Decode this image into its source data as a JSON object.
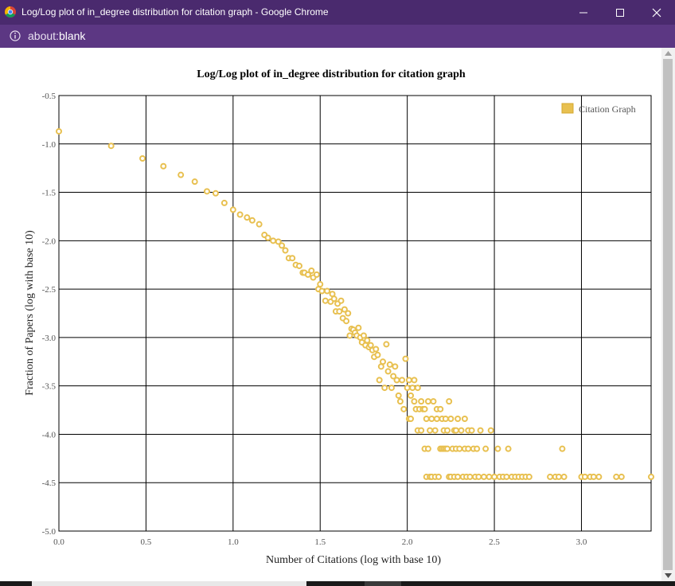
{
  "window": {
    "title": "Log/Log plot of in_degree distribution for citation graph - Google Chrome",
    "url_scheme": "about:",
    "url_host": "blank"
  },
  "icons": {
    "browser": "chrome-icon",
    "info": "info-icon",
    "minimize": "minimize-icon",
    "maximize": "maximize-icon",
    "close": "close-icon"
  },
  "chart_data": {
    "type": "scatter",
    "title": "Log/Log plot of in_degree distribution for citation graph",
    "xlabel": "Number of Citations (log with base 10)",
    "ylabel": "Fraction of Papers (log with base 10)",
    "xlim": [
      0,
      3.4
    ],
    "ylim": [
      -5.0,
      -0.5
    ],
    "xticks": [
      "0.0",
      "0.5",
      "1.0",
      "1.5",
      "2.0",
      "2.5",
      "3.0"
    ],
    "yticks": [
      "-0.5",
      "-1.0",
      "-1.5",
      "-2.0",
      "-2.5",
      "-3.0",
      "-3.5",
      "-4.0",
      "-4.5",
      "-5.0"
    ],
    "grid": true,
    "legend_position": "top-right",
    "marker_color": "#e8c050",
    "series": [
      {
        "name": "Citation Graph",
        "points": [
          [
            0.0,
            -0.87
          ],
          [
            0.3,
            -1.02
          ],
          [
            0.48,
            -1.15
          ],
          [
            0.6,
            -1.23
          ],
          [
            0.7,
            -1.32
          ],
          [
            0.78,
            -1.39
          ],
          [
            0.85,
            -1.49
          ],
          [
            0.9,
            -1.51
          ],
          [
            0.95,
            -1.61
          ],
          [
            1.0,
            -1.68
          ],
          [
            1.04,
            -1.73
          ],
          [
            1.08,
            -1.76
          ],
          [
            1.11,
            -1.79
          ],
          [
            1.15,
            -1.83
          ],
          [
            1.18,
            -1.94
          ],
          [
            1.2,
            -1.97
          ],
          [
            1.23,
            -2.0
          ],
          [
            1.26,
            -2.01
          ],
          [
            1.28,
            -2.05
          ],
          [
            1.3,
            -2.1
          ],
          [
            1.32,
            -2.18
          ],
          [
            1.34,
            -2.18
          ],
          [
            1.36,
            -2.25
          ],
          [
            1.38,
            -2.26
          ],
          [
            1.4,
            -2.33
          ],
          [
            1.41,
            -2.33
          ],
          [
            1.43,
            -2.35
          ],
          [
            1.45,
            -2.31
          ],
          [
            1.46,
            -2.38
          ],
          [
            1.48,
            -2.35
          ],
          [
            1.49,
            -2.5
          ],
          [
            1.5,
            -2.45
          ],
          [
            1.51,
            -2.52
          ],
          [
            1.53,
            -2.62
          ],
          [
            1.54,
            -2.52
          ],
          [
            1.56,
            -2.63
          ],
          [
            1.57,
            -2.55
          ],
          [
            1.58,
            -2.6
          ],
          [
            1.59,
            -2.73
          ],
          [
            1.6,
            -2.65
          ],
          [
            1.61,
            -2.73
          ],
          [
            1.62,
            -2.62
          ],
          [
            1.63,
            -2.8
          ],
          [
            1.64,
            -2.71
          ],
          [
            1.65,
            -2.83
          ],
          [
            1.66,
            -2.75
          ],
          [
            1.67,
            -2.98
          ],
          [
            1.68,
            -2.91
          ],
          [
            1.69,
            -2.92
          ],
          [
            1.7,
            -2.95
          ],
          [
            1.71,
            -2.98
          ],
          [
            1.72,
            -2.9
          ],
          [
            1.73,
            -3.0
          ],
          [
            1.74,
            -3.05
          ],
          [
            1.75,
            -2.98
          ],
          [
            1.76,
            -3.08
          ],
          [
            1.77,
            -3.03
          ],
          [
            1.78,
            -3.1
          ],
          [
            1.79,
            -3.08
          ],
          [
            1.8,
            -3.13
          ],
          [
            1.81,
            -3.2
          ],
          [
            1.82,
            -3.12
          ],
          [
            1.83,
            -3.18
          ],
          [
            1.84,
            -3.44
          ],
          [
            1.85,
            -3.3
          ],
          [
            1.86,
            -3.25
          ],
          [
            1.87,
            -3.52
          ],
          [
            1.88,
            -3.07
          ],
          [
            1.89,
            -3.35
          ],
          [
            1.9,
            -3.28
          ],
          [
            1.91,
            -3.52
          ],
          [
            1.92,
            -3.4
          ],
          [
            1.93,
            -3.3
          ],
          [
            1.94,
            -3.44
          ],
          [
            1.95,
            -3.6
          ],
          [
            1.96,
            -3.66
          ],
          [
            1.97,
            -3.44
          ],
          [
            1.98,
            -3.74
          ],
          [
            1.99,
            -3.22
          ],
          [
            2.0,
            -3.52
          ],
          [
            2.01,
            -3.44
          ],
          [
            2.01,
            -3.84
          ],
          [
            2.02,
            -3.6
          ],
          [
            2.02,
            -3.84
          ],
          [
            2.03,
            -3.52
          ],
          [
            2.04,
            -3.44
          ],
          [
            2.04,
            -3.66
          ],
          [
            2.05,
            -3.74
          ],
          [
            2.06,
            -3.52
          ],
          [
            2.06,
            -3.96
          ],
          [
            2.07,
            -3.74
          ],
          [
            2.08,
            -3.66
          ],
          [
            2.08,
            -3.96
          ],
          [
            2.09,
            -3.74
          ],
          [
            2.1,
            -4.15
          ],
          [
            2.1,
            -3.74
          ],
          [
            2.11,
            -3.84
          ],
          [
            2.11,
            -4.44
          ],
          [
            2.12,
            -3.66
          ],
          [
            2.12,
            -4.15
          ],
          [
            2.13,
            -3.96
          ],
          [
            2.13,
            -4.44
          ],
          [
            2.14,
            -3.84
          ],
          [
            2.14,
            -4.44
          ],
          [
            2.15,
            -3.66
          ],
          [
            2.16,
            -3.96
          ],
          [
            2.16,
            -4.44
          ],
          [
            2.17,
            -3.74
          ],
          [
            2.17,
            -3.84
          ],
          [
            2.18,
            -4.44
          ],
          [
            2.19,
            -3.74
          ],
          [
            2.19,
            -4.15
          ],
          [
            2.2,
            -3.84
          ],
          [
            2.2,
            -4.15
          ],
          [
            2.21,
            -3.96
          ],
          [
            2.21,
            -4.15
          ],
          [
            2.22,
            -3.84
          ],
          [
            2.22,
            -4.15
          ],
          [
            2.23,
            -3.96
          ],
          [
            2.23,
            -4.15
          ],
          [
            2.24,
            -3.66
          ],
          [
            2.24,
            -4.44
          ],
          [
            2.25,
            -3.84
          ],
          [
            2.25,
            -4.44
          ],
          [
            2.26,
            -4.15
          ],
          [
            2.27,
            -3.96
          ],
          [
            2.27,
            -4.44
          ],
          [
            2.28,
            -3.96
          ],
          [
            2.28,
            -4.15
          ],
          [
            2.29,
            -3.84
          ],
          [
            2.29,
            -4.44
          ],
          [
            2.3,
            -4.15
          ],
          [
            2.31,
            -3.96
          ],
          [
            2.32,
            -4.44
          ],
          [
            2.33,
            -3.84
          ],
          [
            2.33,
            -4.15
          ],
          [
            2.34,
            -4.44
          ],
          [
            2.35,
            -3.96
          ],
          [
            2.35,
            -4.15
          ],
          [
            2.36,
            -4.44
          ],
          [
            2.37,
            -3.96
          ],
          [
            2.38,
            -4.15
          ],
          [
            2.39,
            -4.44
          ],
          [
            2.4,
            -4.15
          ],
          [
            2.41,
            -4.44
          ],
          [
            2.42,
            -3.96
          ],
          [
            2.44,
            -4.44
          ],
          [
            2.45,
            -4.15
          ],
          [
            2.47,
            -4.44
          ],
          [
            2.48,
            -3.96
          ],
          [
            2.5,
            -4.44
          ],
          [
            2.52,
            -4.15
          ],
          [
            2.53,
            -4.44
          ],
          [
            2.55,
            -4.44
          ],
          [
            2.57,
            -4.44
          ],
          [
            2.58,
            -4.15
          ],
          [
            2.6,
            -4.44
          ],
          [
            2.62,
            -4.44
          ],
          [
            2.64,
            -4.44
          ],
          [
            2.66,
            -4.44
          ],
          [
            2.68,
            -4.44
          ],
          [
            2.7,
            -4.44
          ],
          [
            2.82,
            -4.44
          ],
          [
            2.85,
            -4.44
          ],
          [
            2.87,
            -4.44
          ],
          [
            2.89,
            -4.15
          ],
          [
            2.9,
            -4.44
          ],
          [
            3.0,
            -4.44
          ],
          [
            3.02,
            -4.44
          ],
          [
            3.05,
            -4.44
          ],
          [
            3.07,
            -4.44
          ],
          [
            3.1,
            -4.44
          ],
          [
            3.2,
            -4.44
          ],
          [
            3.23,
            -4.44
          ],
          [
            3.4,
            -4.44
          ]
        ]
      }
    ]
  }
}
